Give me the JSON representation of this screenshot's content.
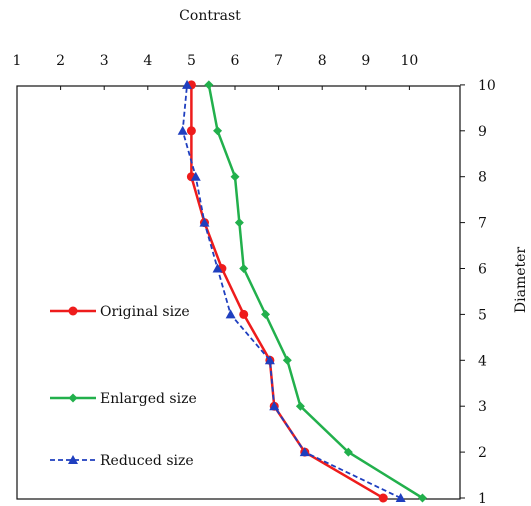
{
  "chart_data": {
    "type": "line",
    "xlabel": "Contrast",
    "ylabel": "Diameter",
    "xlim": [
      1,
      10
    ],
    "ylim": [
      1,
      10
    ],
    "x_axis_position": "top",
    "y_axis_position": "right",
    "x_ticks": [
      "1",
      "2",
      "3",
      "4",
      "5",
      "6",
      "7",
      "8",
      "9",
      "10"
    ],
    "y_ticks": [
      "1",
      "2",
      "3",
      "4",
      "5",
      "6",
      "7",
      "8",
      "9",
      "10"
    ],
    "grid": false,
    "legend_position": "bottom-left",
    "series": [
      {
        "name": "Original size",
        "color": "#ee1c1c",
        "marker": "circle",
        "dash": "solid",
        "points": [
          [
            9.4,
            1
          ],
          [
            7.6,
            2
          ],
          [
            6.9,
            3
          ],
          [
            6.8,
            4
          ],
          [
            6.2,
            5
          ],
          [
            5.7,
            6
          ],
          [
            5.3,
            7
          ],
          [
            5.0,
            8
          ],
          [
            5.0,
            9
          ],
          [
            5.0,
            10
          ]
        ]
      },
      {
        "name": "Enlarged size",
        "color": "#22b04c",
        "marker": "diamond",
        "dash": "solid",
        "points": [
          [
            10.3,
            1
          ],
          [
            8.6,
            2
          ],
          [
            7.5,
            3
          ],
          [
            7.2,
            4
          ],
          [
            6.7,
            5
          ],
          [
            6.2,
            6
          ],
          [
            6.1,
            7
          ],
          [
            6.0,
            8
          ],
          [
            5.6,
            9
          ],
          [
            5.4,
            10
          ]
        ]
      },
      {
        "name": "Reduced size",
        "color": "#1f3fbf",
        "marker": "triangle",
        "dash": "dashed",
        "points": [
          [
            9.8,
            1
          ],
          [
            7.6,
            2
          ],
          [
            6.9,
            3
          ],
          [
            6.8,
            4
          ],
          [
            5.9,
            5
          ],
          [
            5.6,
            6
          ],
          [
            5.3,
            7
          ],
          [
            5.1,
            8
          ],
          [
            4.8,
            9
          ],
          [
            4.9,
            10
          ]
        ]
      }
    ]
  }
}
